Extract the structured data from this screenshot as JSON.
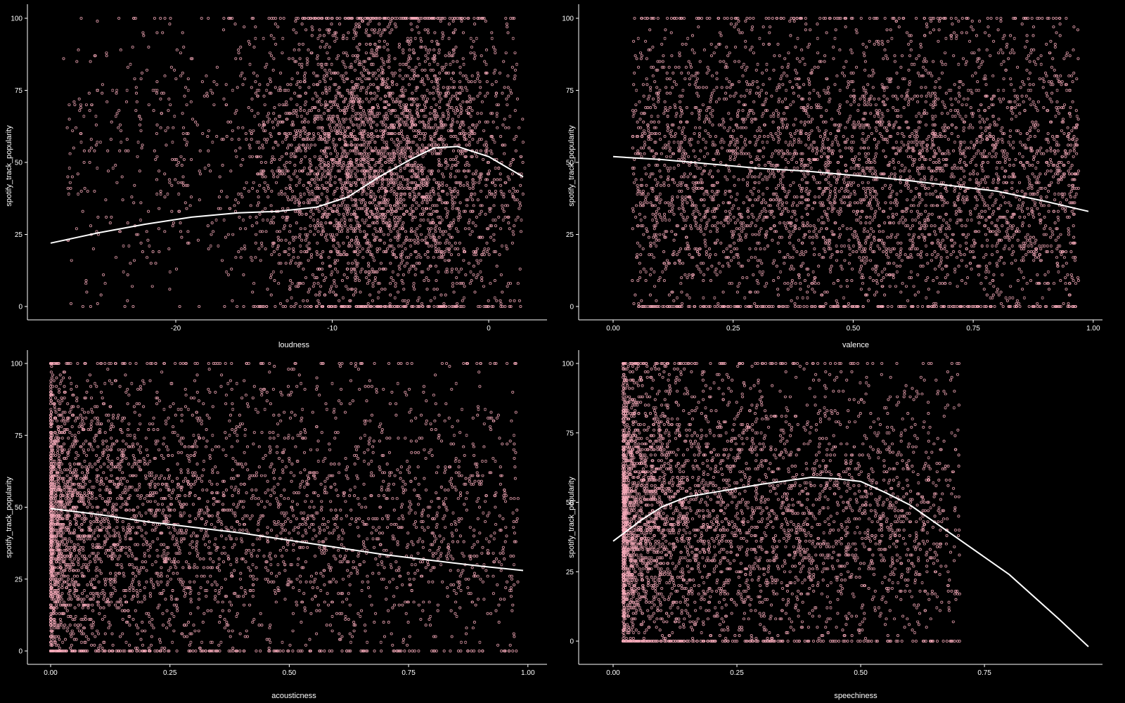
{
  "colors": {
    "background": "#000000",
    "points": "#f4a9b8",
    "trend": "#ffffff",
    "axis": "#ffffff"
  },
  "chart_data": [
    {
      "type": "scatter",
      "xlabel": "loudness",
      "ylabel": "spotify_track_popularity",
      "xlim": [
        -28,
        2.2
      ],
      "ylim": [
        0,
        100
      ],
      "x_ticks": [
        -20,
        -10,
        0
      ],
      "x_tick_labels": [
        "-20",
        "-10",
        "0"
      ],
      "y_ticks": [
        0,
        25,
        50,
        75,
        100
      ],
      "y_tick_labels": [
        "0",
        "25",
        "50",
        "75",
        "100"
      ],
      "density": {
        "kind": "gauss",
        "center": [
          -7,
          50
        ],
        "spread": [
          5,
          28
        ],
        "range": [
          -19,
          0
        ],
        "count": 4200
      },
      "trend": {
        "x": [
          -28,
          -25,
          -22,
          -19,
          -16,
          -13.5,
          -11,
          -9,
          -7,
          -5,
          -3.5,
          -2,
          0,
          2.2
        ],
        "y": [
          22,
          25.5,
          28.5,
          31,
          32.5,
          33,
          34.5,
          38,
          45,
          51,
          55,
          55.5,
          52,
          45
        ]
      }
    },
    {
      "type": "scatter",
      "xlabel": "valence",
      "ylabel": "spotify_track_popularity",
      "xlim": [
        0,
        0.99
      ],
      "ylim": [
        0,
        100
      ],
      "x_ticks": [
        0,
        0.25,
        0.5,
        0.75,
        1.0
      ],
      "x_tick_labels": [
        "0.00",
        "0.25",
        "0.50",
        "0.75",
        "1.00"
      ],
      "y_ticks": [
        0,
        25,
        50,
        75,
        100
      ],
      "y_tick_labels": [
        "0",
        "25",
        "50",
        "75",
        "100"
      ],
      "density": {
        "kind": "uniform",
        "center": [
          0.5,
          45
        ],
        "spread": [
          0.3,
          28
        ],
        "range": [
          0.04,
          0.97
        ],
        "count": 4200
      },
      "trend": {
        "x": [
          0,
          0.1,
          0.2,
          0.3,
          0.4,
          0.5,
          0.6,
          0.7,
          0.8,
          0.9,
          0.99
        ],
        "y": [
          52,
          51,
          49.5,
          48,
          47,
          45.5,
          44,
          42,
          40,
          36.5,
          33
        ]
      }
    },
    {
      "type": "scatter",
      "xlabel": "acousticness",
      "ylabel": "spotify_track_popularity",
      "xlim": [
        0,
        0.99
      ],
      "ylim": [
        0,
        100
      ],
      "x_ticks": [
        0,
        0.25,
        0.5,
        0.75,
        1.0
      ],
      "x_tick_labels": [
        "0.00",
        "0.25",
        "0.50",
        "0.75",
        "1.00"
      ],
      "y_ticks": [
        0,
        25,
        50,
        75,
        100
      ],
      "y_tick_labels": [
        "0",
        "25",
        "50",
        "75",
        "100"
      ],
      "density": {
        "kind": "left",
        "center": [
          0.1,
          45
        ],
        "spread": [
          0.3,
          28
        ],
        "range": [
          0,
          0.98
        ],
        "count": 4200
      },
      "trend": {
        "x": [
          0,
          0.1,
          0.2,
          0.3,
          0.4,
          0.5,
          0.6,
          0.7,
          0.8,
          0.9,
          0.99
        ],
        "y": [
          49.5,
          47.5,
          45,
          43,
          41,
          38.5,
          36,
          33.5,
          31.5,
          29.5,
          28
        ]
      }
    },
    {
      "type": "scatter",
      "xlabel": "speechiness",
      "ylabel": "spotify_track_popularity",
      "xlim": [
        0,
        0.96
      ],
      "ylim": [
        0,
        100
      ],
      "x_ticks": [
        0,
        0.25,
        0.5,
        0.75
      ],
      "x_tick_labels": [
        "0.00",
        "0.25",
        "0.50",
        "0.75"
      ],
      "y_ticks": [
        0,
        25,
        50,
        75,
        100
      ],
      "y_tick_labels": [
        "0",
        "25",
        "50",
        "75",
        "100"
      ],
      "density": {
        "kind": "left",
        "center": [
          0.05,
          45
        ],
        "spread": [
          0.15,
          28
        ],
        "range": [
          0.02,
          0.7
        ],
        "count": 4200
      },
      "trend": {
        "x": [
          0,
          0.03,
          0.06,
          0.1,
          0.15,
          0.2,
          0.3,
          0.4,
          0.45,
          0.5,
          0.55,
          0.6,
          0.7,
          0.8,
          0.9,
          0.96
        ],
        "y": [
          36,
          40,
          44,
          48.5,
          52,
          53.5,
          56.5,
          59,
          58.5,
          57.5,
          53.5,
          49,
          36.5,
          24,
          8,
          -2
        ]
      }
    }
  ]
}
